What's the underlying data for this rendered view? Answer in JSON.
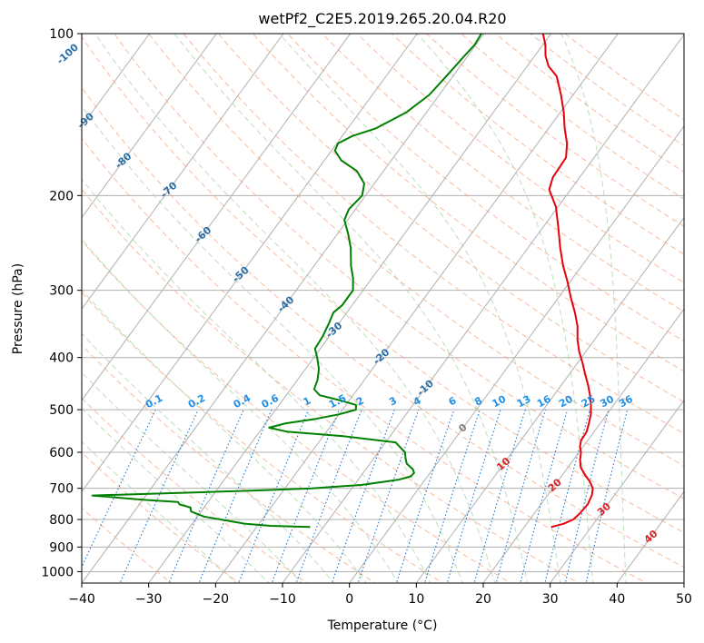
{
  "chart_data": {
    "type": "line",
    "title": "wetPf2_C2E5.2019.265.20.04.R20",
    "xlabel": "Temperature (°C)",
    "ylabel": "Pressure (hPa)",
    "xlim": [
      -40,
      50
    ],
    "ylim": [
      1050,
      100
    ],
    "y_scale": "log",
    "skew": true,
    "grid": true,
    "x_ticks": [
      -40,
      -30,
      -20,
      -10,
      0,
      10,
      20,
      30,
      40,
      50
    ],
    "x_tick_labels": [
      "−40",
      "−30",
      "−20",
      "−10",
      "0",
      "10",
      "20",
      "30",
      "40",
      "50"
    ],
    "y_ticks": [
      1000,
      900,
      800,
      700,
      600,
      500,
      400,
      300,
      200,
      100
    ],
    "y_tick_labels": [
      "1000",
      "900",
      "800",
      "700",
      "600",
      "500",
      "400",
      "300",
      "200",
      "100"
    ],
    "series": [
      {
        "role": "temperature",
        "color": "#e8000b",
        "points": [
          [
            826,
            24.0
          ],
          [
            815,
            25.5
          ],
          [
            800,
            26.5
          ],
          [
            780,
            26.8
          ],
          [
            750,
            27.0
          ],
          [
            720,
            26.6
          ],
          [
            700,
            26.0
          ],
          [
            680,
            24.8
          ],
          [
            660,
            23.3
          ],
          [
            640,
            21.9
          ],
          [
            620,
            21.0
          ],
          [
            600,
            20.3
          ],
          [
            585,
            19.5
          ],
          [
            570,
            19.0
          ],
          [
            550,
            18.9
          ],
          [
            530,
            18.3
          ],
          [
            510,
            17.6
          ],
          [
            490,
            16.6
          ],
          [
            470,
            15.4
          ],
          [
            450,
            14.0
          ],
          [
            430,
            12.4
          ],
          [
            410,
            10.8
          ],
          [
            390,
            9.0
          ],
          [
            370,
            7.4
          ],
          [
            350,
            6.0
          ],
          [
            330,
            4.1
          ],
          [
            310,
            1.9
          ],
          [
            290,
            -0.3
          ],
          [
            270,
            -2.8
          ],
          [
            250,
            -5.2
          ],
          [
            230,
            -7.6
          ],
          [
            210,
            -10.3
          ],
          [
            195,
            -13.2
          ],
          [
            185,
            -14.0
          ],
          [
            170,
            -14.2
          ],
          [
            160,
            -15.6
          ],
          [
            150,
            -17.6
          ],
          [
            140,
            -19.5
          ],
          [
            130,
            -21.8
          ],
          [
            120,
            -24.5
          ],
          [
            115,
            -26.8
          ],
          [
            110,
            -28.4
          ],
          [
            105,
            -29.6
          ],
          [
            100,
            -31.2
          ]
        ]
      },
      {
        "role": "dewpoint",
        "color": "#008000",
        "points": [
          [
            826,
            -12.0
          ],
          [
            822,
            -18.0
          ],
          [
            815,
            -22.0
          ],
          [
            790,
            -29.0
          ],
          [
            773,
            -31.5
          ],
          [
            760,
            -32.0
          ],
          [
            750,
            -34.0
          ],
          [
            742,
            -34.5
          ],
          [
            735,
            -40.0
          ],
          [
            722,
            -48.0
          ],
          [
            712,
            -32.0
          ],
          [
            705,
            -22.0
          ],
          [
            700,
            -16.0
          ],
          [
            690,
            -9.0
          ],
          [
            675,
            -4.0
          ],
          [
            665,
            -2.5
          ],
          [
            655,
            -2.4
          ],
          [
            645,
            -3.0
          ],
          [
            630,
            -4.5
          ],
          [
            615,
            -5.3
          ],
          [
            600,
            -6.0
          ],
          [
            590,
            -7.0
          ],
          [
            575,
            -8.5
          ],
          [
            560,
            -17.0
          ],
          [
            549,
            -26.0
          ],
          [
            540,
            -29.0
          ],
          [
            530,
            -27.0
          ],
          [
            520,
            -23.0
          ],
          [
            510,
            -20.0
          ],
          [
            500,
            -18.0
          ],
          [
            490,
            -18.5
          ],
          [
            480,
            -21.5
          ],
          [
            470,
            -25.0
          ],
          [
            458,
            -26.5
          ],
          [
            440,
            -27.0
          ],
          [
            420,
            -28.0
          ],
          [
            400,
            -29.5
          ],
          [
            385,
            -30.8
          ],
          [
            365,
            -31.0
          ],
          [
            345,
            -31.5
          ],
          [
            330,
            -32.0
          ],
          [
            320,
            -31.5
          ],
          [
            300,
            -31.5
          ],
          [
            285,
            -32.8
          ],
          [
            270,
            -34.5
          ],
          [
            250,
            -36.5
          ],
          [
            235,
            -38.5
          ],
          [
            222,
            -40.5
          ],
          [
            212,
            -41.0
          ],
          [
            200,
            -40.5
          ],
          [
            190,
            -41.5
          ],
          [
            180,
            -44.0
          ],
          [
            172,
            -47.5
          ],
          [
            165,
            -49.5
          ],
          [
            160,
            -49.8
          ],
          [
            155,
            -48.5
          ],
          [
            150,
            -45.8
          ],
          [
            140,
            -43.0
          ],
          [
            130,
            -41.5
          ],
          [
            120,
            -41.0
          ],
          [
            110,
            -40.5
          ],
          [
            105,
            -40.2
          ],
          [
            100,
            -40.4
          ]
        ]
      }
    ],
    "dry_adiabat_labels": [
      "-100",
      "-90",
      "-80",
      "-70",
      "-60",
      "-50",
      "-40",
      "-30",
      "-20",
      "-10"
    ],
    "moist_adiabat_labels": [
      "0",
      "10",
      "20",
      "30",
      "40"
    ],
    "mixing_ratio_labels": [
      "0.1",
      "0.2",
      "0.4",
      "0.6",
      "1",
      "1.5",
      "2",
      "3",
      "4",
      "6",
      "8",
      "10",
      "13",
      "16",
      "20",
      "25",
      "30",
      "36"
    ]
  }
}
